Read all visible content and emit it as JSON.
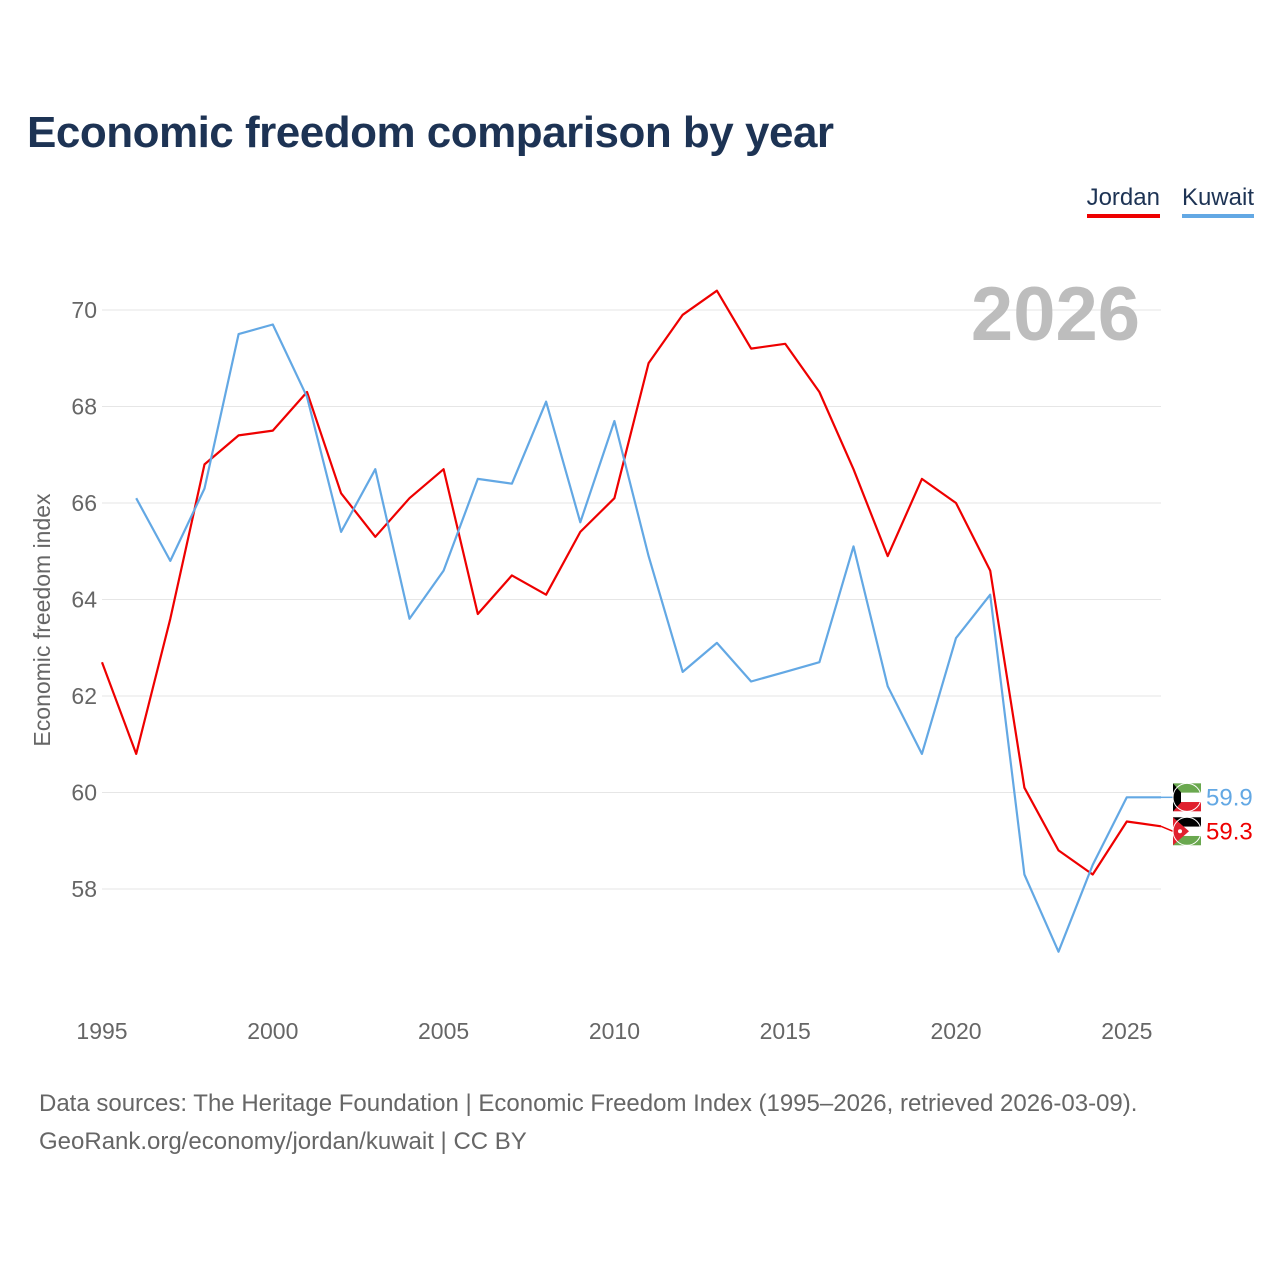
{
  "title": "Economic freedom comparison by year",
  "legend": [
    {
      "name": "Jordan",
      "color": "#ee0000"
    },
    {
      "name": "Kuwait",
      "color": "#63a8e4"
    }
  ],
  "footer": {
    "line1": "Data sources: The Heritage Foundation | Economic Freedom Index (1995–2026, retrieved 2026-03-09).",
    "line2": "GeoRank.org/economy/jordan/kuwait | CC BY"
  },
  "chart_data": {
    "type": "line",
    "title": "Economic freedom comparison by year",
    "xlabel": "",
    "ylabel": "Economic freedom index",
    "current_year_label": "2026",
    "xlim": [
      1995,
      2026
    ],
    "ylim": [
      56,
      71
    ],
    "x_ticks": [
      1995,
      2000,
      2005,
      2010,
      2015,
      2020,
      2025
    ],
    "y_ticks": [
      58,
      60,
      62,
      64,
      66,
      68,
      70
    ],
    "grid": true,
    "legend_position": "top-right",
    "series": [
      {
        "name": "Jordan",
        "color": "#ee0000",
        "end_label": "59.3",
        "points": [
          [
            1995,
            62.7
          ],
          [
            1996,
            60.8
          ],
          [
            1997,
            63.6
          ],
          [
            1998,
            66.8
          ],
          [
            1999,
            67.4
          ],
          [
            2000,
            67.5
          ],
          [
            2001,
            68.3
          ],
          [
            2002,
            66.2
          ],
          [
            2003,
            65.3
          ],
          [
            2004,
            66.1
          ],
          [
            2005,
            66.7
          ],
          [
            2006,
            63.7
          ],
          [
            2007,
            64.5
          ],
          [
            2008,
            64.1
          ],
          [
            2009,
            65.4
          ],
          [
            2010,
            66.1
          ],
          [
            2011,
            68.9
          ],
          [
            2012,
            69.9
          ],
          [
            2013,
            70.4
          ],
          [
            2014,
            69.2
          ],
          [
            2015,
            69.3
          ],
          [
            2016,
            68.3
          ],
          [
            2017,
            66.7
          ],
          [
            2018,
            64.9
          ],
          [
            2019,
            66.5
          ],
          [
            2020,
            66.0
          ],
          [
            2021,
            64.6
          ],
          [
            2022,
            60.1
          ],
          [
            2023,
            58.8
          ],
          [
            2024,
            58.3
          ],
          [
            2025,
            59.4
          ],
          [
            2026,
            59.3
          ]
        ]
      },
      {
        "name": "Kuwait",
        "color": "#63a8e4",
        "end_label": "59.9",
        "points": [
          [
            1996,
            66.1
          ],
          [
            1997,
            64.8
          ],
          [
            1998,
            66.3
          ],
          [
            1999,
            69.5
          ],
          [
            2000,
            69.7
          ],
          [
            2001,
            68.2
          ],
          [
            2002,
            65.4
          ],
          [
            2003,
            66.7
          ],
          [
            2004,
            63.6
          ],
          [
            2005,
            64.6
          ],
          [
            2006,
            66.5
          ],
          [
            2007,
            66.4
          ],
          [
            2008,
            68.1
          ],
          [
            2009,
            65.6
          ],
          [
            2010,
            67.7
          ],
          [
            2011,
            64.9
          ],
          [
            2012,
            62.5
          ],
          [
            2013,
            63.1
          ],
          [
            2014,
            62.3
          ],
          [
            2015,
            62.5
          ],
          [
            2016,
            62.7
          ],
          [
            2017,
            65.1
          ],
          [
            2018,
            62.2
          ],
          [
            2019,
            60.8
          ],
          [
            2020,
            63.2
          ],
          [
            2021,
            64.1
          ],
          [
            2022,
            58.3
          ],
          [
            2023,
            56.7
          ],
          [
            2024,
            58.5
          ],
          [
            2025,
            59.9
          ],
          [
            2026,
            59.9
          ]
        ]
      }
    ]
  }
}
